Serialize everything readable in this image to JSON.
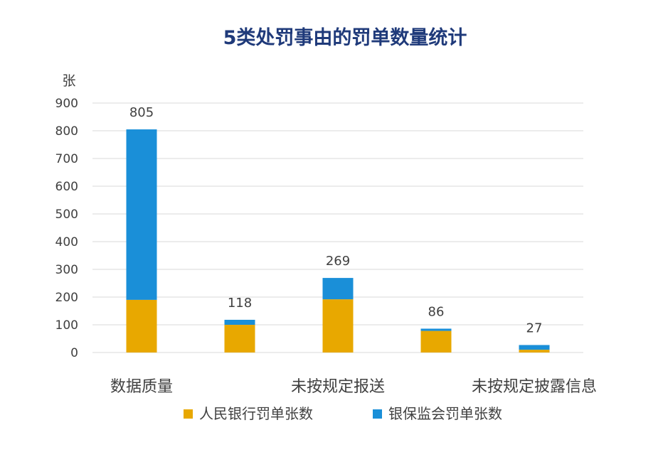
{
  "chart_data": {
    "type": "bar",
    "stacked": true,
    "title": "5类处罚事由的罚单数量统计",
    "ylabel": "张",
    "xlabel": "",
    "ylim": [
      0,
      900
    ],
    "yticks": [
      0,
      100,
      200,
      300,
      400,
      500,
      600,
      700,
      800,
      900
    ],
    "grid": true,
    "legend_position": "bottom",
    "categories": [
      "数据质量",
      "",
      "未按规定报送",
      "",
      "未按规定披露信息"
    ],
    "totals": [
      805,
      118,
      269,
      86,
      27
    ],
    "series": [
      {
        "name": "人民银行罚单张数",
        "color": "#E8A800",
        "values": [
          190,
          100,
          192,
          78,
          10
        ]
      },
      {
        "name": "银保监会罚单张数",
        "color": "#1A8FD8",
        "values": [
          615,
          18,
          77,
          8,
          17
        ]
      }
    ]
  }
}
